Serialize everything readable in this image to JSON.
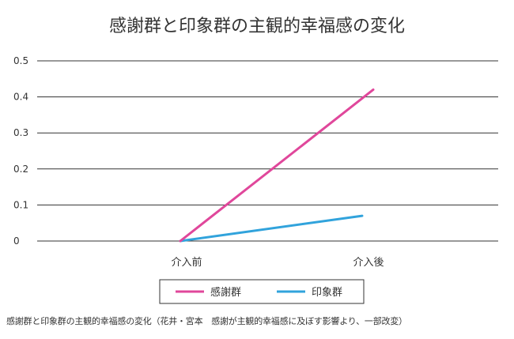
{
  "chart_data": {
    "type": "line",
    "title": "感謝群と印象群の主観的幸福感の変化",
    "categories": [
      "介入前",
      "介入後"
    ],
    "ylim": [
      0,
      0.5
    ],
    "yticks": [
      "0",
      "0.1",
      "0.2",
      "0.3",
      "0.4",
      "0.5"
    ],
    "grid": true,
    "legend_position": "bottom",
    "series": [
      {
        "name": "感謝群",
        "values": [
          0,
          0.42
        ],
        "color": "#e0479b"
      },
      {
        "name": "印象群",
        "values": [
          0,
          0.07
        ],
        "color": "#31a3dc"
      }
    ]
  },
  "caption": "感謝群と印象群の主観的幸福感の変化（花井・宮本　感謝が主観的幸福感に及ぼす影響より、一部改変）"
}
